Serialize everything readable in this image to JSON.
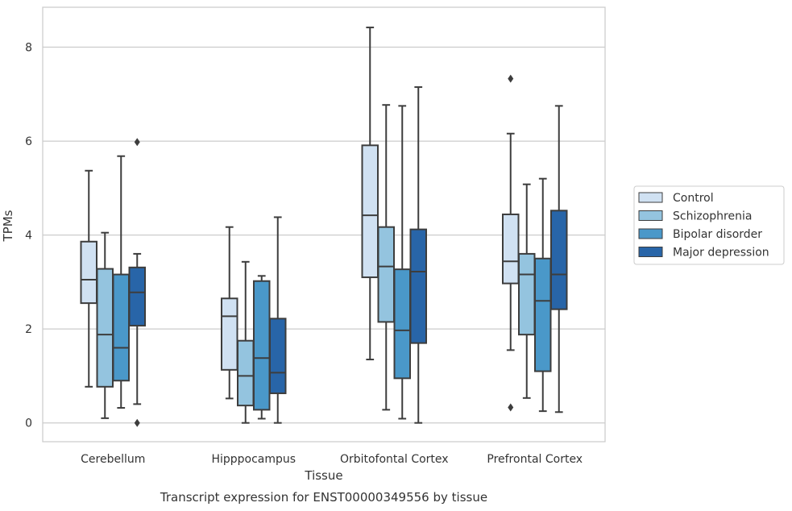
{
  "chart_data": {
    "type": "box",
    "title": "",
    "caption": "Transcript expression for ENST00000349556 by tissue",
    "xlabel": "Tissue",
    "ylabel": "TPMs",
    "ylim": [
      -0.4,
      8.85
    ],
    "yticks": [
      0,
      2,
      4,
      6,
      8
    ],
    "grid": "horizontal",
    "legend_position": "right",
    "categories": [
      "Cerebellum",
      "Hipppocampus",
      "Orbitofontal Cortex",
      "Prefrontal Cortex"
    ],
    "series": [
      {
        "name": "Control",
        "color": "#d0e1f2",
        "boxes": [
          {
            "min": 0.77,
            "q1": 2.55,
            "median": 3.05,
            "q3": 3.86,
            "max": 5.37,
            "outliers": []
          },
          {
            "min": 0.52,
            "q1": 1.13,
            "median": 2.27,
            "q3": 2.65,
            "max": 4.17,
            "outliers": []
          },
          {
            "min": 1.35,
            "q1": 3.1,
            "median": 4.42,
            "q3": 5.91,
            "max": 8.42,
            "outliers": []
          },
          {
            "min": 1.55,
            "q1": 2.97,
            "median": 3.44,
            "q3": 4.44,
            "max": 6.16,
            "outliers": [
              7.33,
              0.33
            ]
          }
        ]
      },
      {
        "name": "Schizophrenia",
        "color": "#94c4df",
        "boxes": [
          {
            "min": 0.1,
            "q1": 0.77,
            "median": 1.88,
            "q3": 3.28,
            "max": 4.05,
            "outliers": []
          },
          {
            "min": 0.0,
            "q1": 0.37,
            "median": 1.0,
            "q3": 1.75,
            "max": 3.43,
            "outliers": []
          },
          {
            "min": 0.28,
            "q1": 2.15,
            "median": 3.33,
            "q3": 4.17,
            "max": 6.77,
            "outliers": []
          },
          {
            "min": 0.53,
            "q1": 1.88,
            "median": 3.16,
            "q3": 3.6,
            "max": 5.08,
            "outliers": []
          }
        ]
      },
      {
        "name": "Bipolar disorder",
        "color": "#4a98c9",
        "boxes": [
          {
            "min": 0.32,
            "q1": 0.9,
            "median": 1.6,
            "q3": 3.16,
            "max": 5.68,
            "outliers": []
          },
          {
            "min": 0.09,
            "q1": 0.28,
            "median": 1.38,
            "q3": 3.02,
            "max": 3.13,
            "outliers": []
          },
          {
            "min": 0.09,
            "q1": 0.95,
            "median": 1.97,
            "q3": 3.27,
            "max": 6.75,
            "outliers": []
          },
          {
            "min": 0.25,
            "q1": 1.1,
            "median": 2.6,
            "q3": 3.5,
            "max": 5.2,
            "outliers": []
          }
        ]
      },
      {
        "name": "Major depression",
        "color": "#2865a8",
        "boxes": [
          {
            "min": 0.4,
            "q1": 2.07,
            "median": 2.78,
            "q3": 3.31,
            "max": 3.6,
            "outliers": [
              5.98,
              0.0
            ]
          },
          {
            "min": 0.0,
            "q1": 0.63,
            "median": 1.07,
            "q3": 2.22,
            "max": 4.38,
            "outliers": []
          },
          {
            "min": 0.0,
            "q1": 1.7,
            "median": 3.22,
            "q3": 4.12,
            "max": 7.15,
            "outliers": []
          },
          {
            "min": 0.23,
            "q1": 2.42,
            "median": 3.16,
            "q3": 4.52,
            "max": 6.75,
            "outliers": []
          }
        ]
      }
    ]
  }
}
